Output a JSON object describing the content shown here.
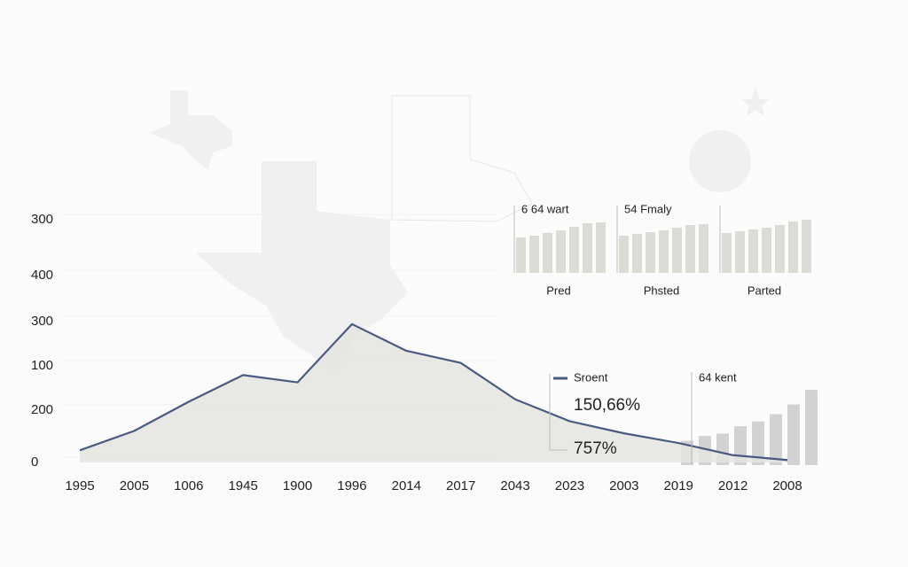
{
  "chart_data": {
    "type": "area",
    "categories": [
      "1995",
      "2005",
      "1006",
      "1945",
      "1900",
      "1996",
      "2014",
      "2017",
      "2043",
      "2023",
      "2003",
      "2019",
      "2012",
      "2008"
    ],
    "values": [
      5,
      13,
      25,
      36,
      33,
      57,
      46,
      41,
      26,
      17,
      12,
      8,
      3,
      1
    ],
    "ylim": [
      0,
      100
    ],
    "y_labels": [
      "0",
      "200",
      "100",
      "300",
      "400",
      "300"
    ],
    "color": "#4a5a80",
    "fill": "#e4e5e0",
    "panels": [
      {
        "title": "6 64 wart",
        "label": "Pred",
        "values": [
          40,
          42,
          45,
          48,
          52,
          56,
          57
        ]
      },
      {
        "title": "54 Fmaly",
        "label": "Phsted",
        "values": [
          42,
          44,
          46,
          48,
          51,
          54,
          55
        ]
      },
      {
        "label": "Parted",
        "values": [
          45,
          47,
          49,
          51,
          54,
          58,
          60
        ]
      }
    ],
    "legend": "Sroent",
    "annotations": [
      "150,66%",
      "757%"
    ],
    "inset": {
      "title": "64 kent",
      "values": [
        10,
        12,
        13,
        16,
        18,
        21,
        25,
        31
      ]
    }
  }
}
